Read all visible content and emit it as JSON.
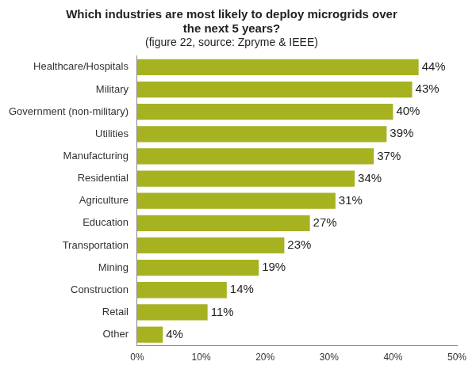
{
  "chart_data": {
    "type": "bar",
    "orientation": "horizontal",
    "title": "Which industries are most likely to deploy microgrids over the next 5 years?",
    "subtitle": "(figure 22, source: Zpryme & IEEE)",
    "categories": [
      "Healthcare/Hospitals",
      "Military",
      "Government (non-military)",
      "Utilities",
      "Manufacturing",
      "Residential",
      "Agriculture",
      "Education",
      "Transportation",
      "Mining",
      "Construction",
      "Retail",
      "Other"
    ],
    "values": [
      44,
      43,
      40,
      39,
      37,
      34,
      31,
      27,
      23,
      19,
      14,
      11,
      4
    ],
    "value_labels": [
      "44%",
      "43%",
      "40%",
      "39%",
      "37%",
      "34%",
      "31%",
      "27%",
      "23%",
      "19%",
      "14%",
      "11%",
      "4%"
    ],
    "color": "#a6b220",
    "xlim": [
      0,
      50
    ],
    "xticks": [
      {
        "value": 0,
        "label": "0%"
      },
      {
        "value": 10,
        "label": "10%"
      },
      {
        "value": 20,
        "label": "20%"
      },
      {
        "value": 30,
        "label": "30%"
      },
      {
        "value": 40,
        "label": "40%"
      },
      {
        "value": 50,
        "label": "50%"
      }
    ],
    "grid": false,
    "data_labels": true
  }
}
